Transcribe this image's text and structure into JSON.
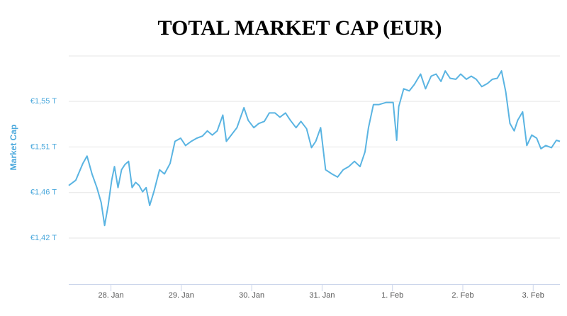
{
  "chart_data": {
    "type": "line",
    "title": "TOTAL MARKET CAP (EUR)",
    "y_label": "Market Cap",
    "x": [
      -0.6,
      -0.5,
      -0.4,
      -0.34,
      -0.27,
      -0.2,
      -0.14,
      -0.09,
      -0.04,
      0.01,
      0.05,
      0.1,
      0.15,
      0.2,
      0.25,
      0.3,
      0.35,
      0.4,
      0.45,
      0.5,
      0.55,
      0.61,
      0.69,
      0.76,
      0.84,
      0.91,
      0.99,
      1.06,
      1.14,
      1.22,
      1.3,
      1.37,
      1.44,
      1.51,
      1.59,
      1.64,
      1.71,
      1.79,
      1.89,
      1.95,
      2.03,
      2.1,
      2.18,
      2.25,
      2.33,
      2.4,
      2.48,
      2.55,
      2.63,
      2.7,
      2.78,
      2.85,
      2.91,
      2.98,
      3.05,
      3.14,
      3.22,
      3.3,
      3.38,
      3.46,
      3.54,
      3.61,
      3.66,
      3.73,
      3.81,
      3.91,
      4.01,
      4.06,
      4.09,
      4.16,
      4.24,
      4.31,
      4.4,
      4.47,
      4.55,
      4.62,
      4.69,
      4.75,
      4.82,
      4.9,
      4.97,
      5.05,
      5.12,
      5.19,
      5.27,
      5.35,
      5.42,
      5.49,
      5.55,
      5.61,
      5.67,
      5.73,
      5.78,
      5.85,
      5.91,
      5.98,
      6.05,
      6.11,
      6.18,
      6.26,
      6.33,
      6.38
    ],
    "series": [
      {
        "name": "Market Cap",
        "color": "#5ab4e2",
        "values": [
          1.47,
          1.475,
          1.491,
          1.498,
          1.481,
          1.468,
          1.454,
          1.432,
          1.451,
          1.475,
          1.488,
          1.468,
          1.485,
          1.49,
          1.493,
          1.468,
          1.473,
          1.47,
          1.464,
          1.468,
          1.451,
          1.464,
          1.485,
          1.481,
          1.491,
          1.512,
          1.515,
          1.508,
          1.512,
          1.515,
          1.517,
          1.522,
          1.518,
          1.522,
          1.537,
          1.512,
          1.518,
          1.525,
          1.544,
          1.532,
          1.525,
          1.529,
          1.531,
          1.539,
          1.539,
          1.535,
          1.539,
          1.532,
          1.525,
          1.531,
          1.524,
          1.506,
          1.512,
          1.525,
          1.485,
          1.481,
          1.478,
          1.485,
          1.488,
          1.493,
          1.488,
          1.502,
          1.525,
          1.547,
          1.547,
          1.549,
          1.549,
          1.513,
          1.545,
          1.562,
          1.56,
          1.566,
          1.576,
          1.562,
          1.574,
          1.576,
          1.569,
          1.579,
          1.572,
          1.571,
          1.576,
          1.571,
          1.574,
          1.571,
          1.564,
          1.567,
          1.571,
          1.572,
          1.579,
          1.559,
          1.529,
          1.522,
          1.532,
          1.54,
          1.508,
          1.518,
          1.515,
          1.505,
          1.508,
          1.506,
          1.513,
          1.512
        ]
      }
    ],
    "xlim": [
      -0.6,
      6.38
    ],
    "xticks": [
      {
        "value": 0,
        "label": "28. Jan"
      },
      {
        "value": 1,
        "label": "29. Jan"
      },
      {
        "value": 2,
        "label": "30. Jan"
      },
      {
        "value": 3,
        "label": "31. Jan"
      },
      {
        "value": 4,
        "label": "1. Feb"
      },
      {
        "value": 5,
        "label": "2. Feb"
      },
      {
        "value": 6,
        "label": "3. Feb"
      }
    ],
    "ylim": [
      1.3762,
      1.5932
    ],
    "yticks": [
      {
        "value": 1.42,
        "label": "€1,42 T"
      },
      {
        "value": 1.4633,
        "label": "€1,46 T"
      },
      {
        "value": 1.5067,
        "label": "€1,51 T"
      },
      {
        "value": 1.55,
        "label": "€1,55 T"
      }
    ],
    "grid": true
  }
}
